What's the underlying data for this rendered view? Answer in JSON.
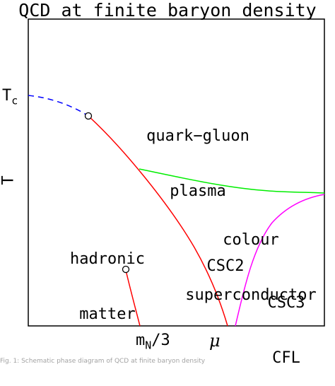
{
  "title": "QCD at finite baryon density",
  "axes": {
    "y_label": "T",
    "y_tick": "T",
    "y_tick_subscript": "c",
    "x_tick": "m",
    "x_tick_subscript": "N",
    "x_tick_suffix": "/3",
    "x_label": "μ"
  },
  "regions": {
    "qgp_line1": "quark−gluon",
    "qgp_line2": "plasma",
    "csc_line1": "colour",
    "csc_line2": "superconductor",
    "hadronic_line1": "hadronic",
    "hadronic_line2": "matter",
    "csc2": "CSC2",
    "csc3_line1": "CSC3",
    "csc3_line2": "CFL"
  },
  "colors": {
    "crossover": "#0000ff",
    "deconfinement": "#ff0000",
    "csc_boundary": "#00ee00",
    "cfl_boundary": "#ff00ff",
    "axes": "#000000"
  },
  "caption": "Fig. 1: Schematic phase diagram of QCD at finite baryon density"
}
